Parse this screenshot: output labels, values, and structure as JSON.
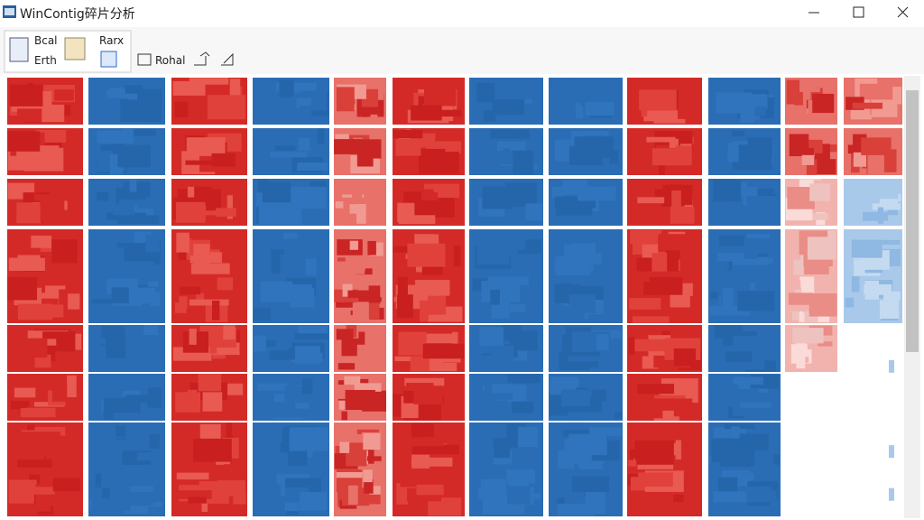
{
  "window": {
    "title": "WinContig碎片分析"
  },
  "toolbar": {
    "group": [
      "Bcal",
      "Erth",
      "Rarx"
    ],
    "actions": [
      "Rohal"
    ]
  }
}
